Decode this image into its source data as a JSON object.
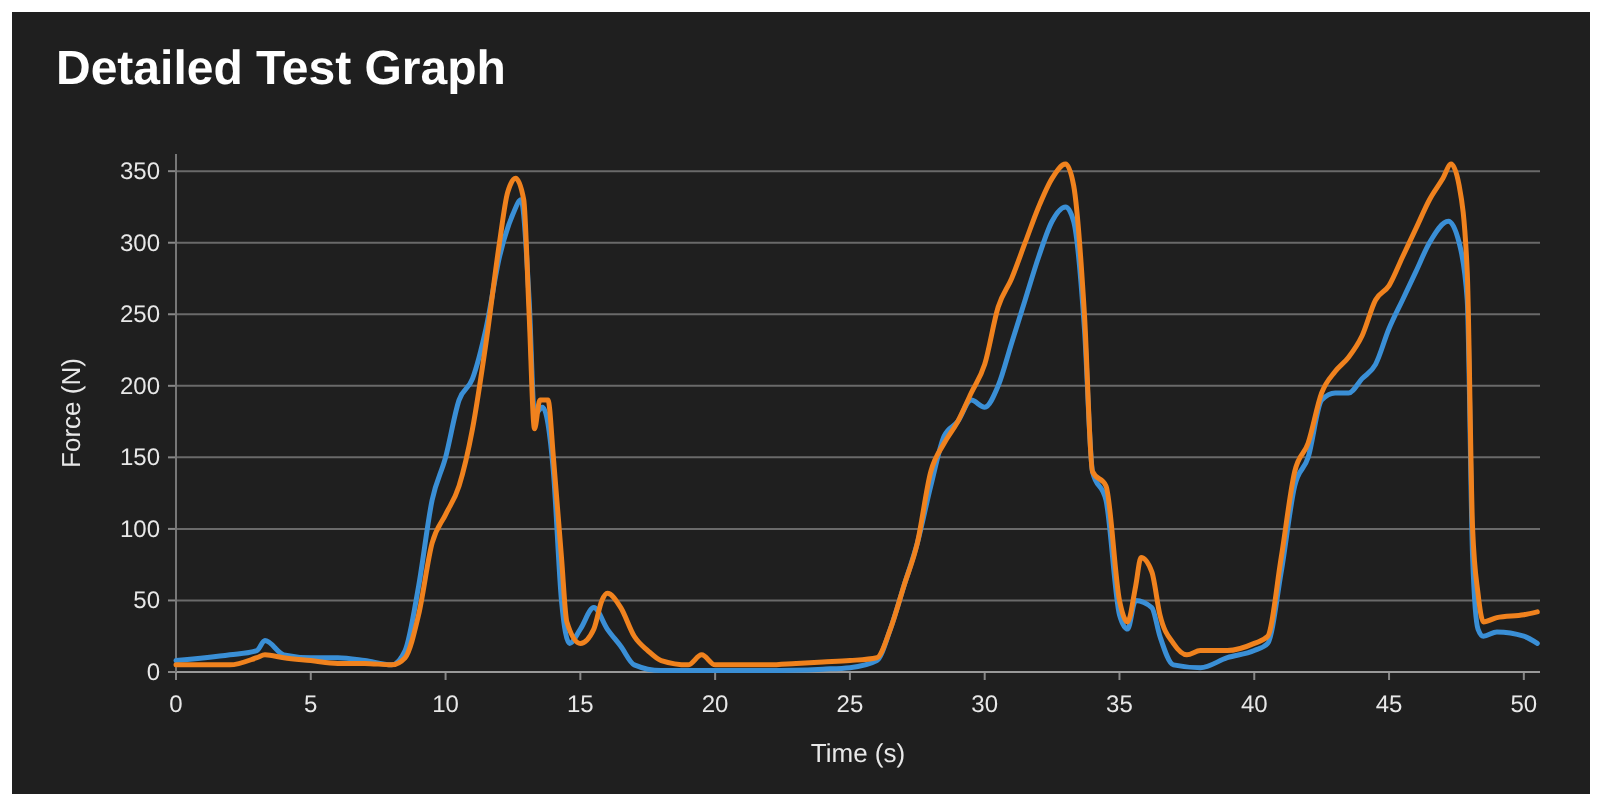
{
  "chart_data": {
    "type": "line",
    "title": "Detailed Test Graph",
    "xlabel": "Time (s)",
    "ylabel": "Force (N)",
    "xlim": [
      0,
      50.6
    ],
    "xticks": [
      0,
      5,
      10,
      15,
      20,
      25,
      30,
      35,
      40,
      45,
      50
    ],
    "ylim": [
      0,
      362
    ],
    "yticks": [
      0,
      50,
      100,
      150,
      200,
      250,
      300,
      350
    ],
    "grid": "y",
    "marker": "none",
    "line_style": "solid",
    "series": [
      {
        "color": "#3a8fd6",
        "x": [
          0,
          2,
          3,
          3.3,
          4,
          5,
          6,
          7,
          8,
          8.5,
          9,
          9.5,
          10,
          10.5,
          11,
          11.5,
          12,
          12.5,
          12.8,
          13.1,
          13.3,
          13.6,
          14,
          14.3,
          14.6,
          15,
          15.5,
          16,
          16.5,
          17,
          18,
          20,
          22,
          24,
          25,
          26,
          26.5,
          27,
          27.5,
          28,
          28.5,
          29,
          29.5,
          30,
          30.5,
          31,
          31.5,
          32,
          32.5,
          33,
          33.3,
          33.7,
          34,
          34.5,
          35,
          35.3,
          35.6,
          36.2,
          36.5,
          37,
          38,
          39,
          40,
          40.5,
          41,
          41.5,
          42,
          42.5,
          43,
          43.5,
          44,
          44.5,
          45,
          45.5,
          46,
          46.5,
          47.2,
          47.6,
          47.9,
          48.1,
          48.3,
          48.5,
          49,
          50,
          50.5
        ],
        "values": [
          8,
          12,
          15,
          22,
          12,
          10,
          10,
          8,
          5,
          15,
          60,
          120,
          150,
          190,
          205,
          240,
          290,
          320,
          330,
          260,
          180,
          185,
          140,
          50,
          20,
          30,
          45,
          30,
          18,
          5,
          1,
          1,
          1,
          2,
          3,
          8,
          30,
          60,
          90,
          130,
          165,
          175,
          190,
          185,
          200,
          230,
          260,
          290,
          315,
          325,
          315,
          240,
          140,
          120,
          40,
          30,
          50,
          45,
          25,
          5,
          3,
          10,
          15,
          20,
          70,
          130,
          150,
          190,
          195,
          195,
          205,
          215,
          240,
          260,
          280,
          300,
          315,
          300,
          260,
          80,
          30,
          25,
          28,
          25,
          20
        ]
      },
      {
        "color": "#f0821e",
        "x": [
          0,
          2,
          3,
          3.3,
          4,
          5,
          6,
          7,
          8,
          8.5,
          9,
          9.5,
          10,
          10.5,
          11,
          11.5,
          12,
          12.3,
          12.6,
          12.9,
          13.1,
          13.3,
          13.5,
          13.8,
          14,
          14.3,
          14.5,
          15,
          15.5,
          15.8,
          16,
          16.5,
          17,
          17.5,
          18,
          19,
          19.5,
          20,
          21,
          22,
          23,
          24,
          25,
          26,
          26.5,
          27,
          27.5,
          28,
          28.5,
          29,
          29.5,
          30,
          30.5,
          31,
          31.5,
          32,
          32.5,
          33,
          33.3,
          33.7,
          34,
          34.5,
          35,
          35.3,
          35.6,
          35.8,
          36.2,
          36.5,
          37,
          37.5,
          38,
          39,
          40,
          40.5,
          41,
          41.5,
          42,
          42.5,
          43,
          43.5,
          44,
          44.5,
          45,
          45.5,
          46,
          46.5,
          47,
          47.3,
          47.6,
          47.9,
          48.1,
          48.3,
          48.5,
          49,
          50,
          50.5
        ],
        "values": [
          5,
          5,
          10,
          12,
          10,
          8,
          6,
          6,
          5,
          10,
          40,
          90,
          110,
          130,
          170,
          230,
          300,
          335,
          345,
          330,
          250,
          170,
          190,
          190,
          150,
          80,
          35,
          20,
          30,
          50,
          55,
          45,
          25,
          15,
          8,
          5,
          12,
          5,
          5,
          5,
          6,
          7,
          8,
          10,
          30,
          60,
          90,
          140,
          160,
          175,
          195,
          215,
          255,
          275,
          300,
          325,
          345,
          355,
          340,
          250,
          140,
          130,
          50,
          35,
          60,
          80,
          70,
          40,
          20,
          12,
          15,
          15,
          20,
          25,
          80,
          140,
          160,
          195,
          210,
          220,
          235,
          260,
          270,
          290,
          310,
          330,
          345,
          355,
          340,
          280,
          100,
          55,
          35,
          38,
          40,
          42
        ]
      }
    ]
  }
}
